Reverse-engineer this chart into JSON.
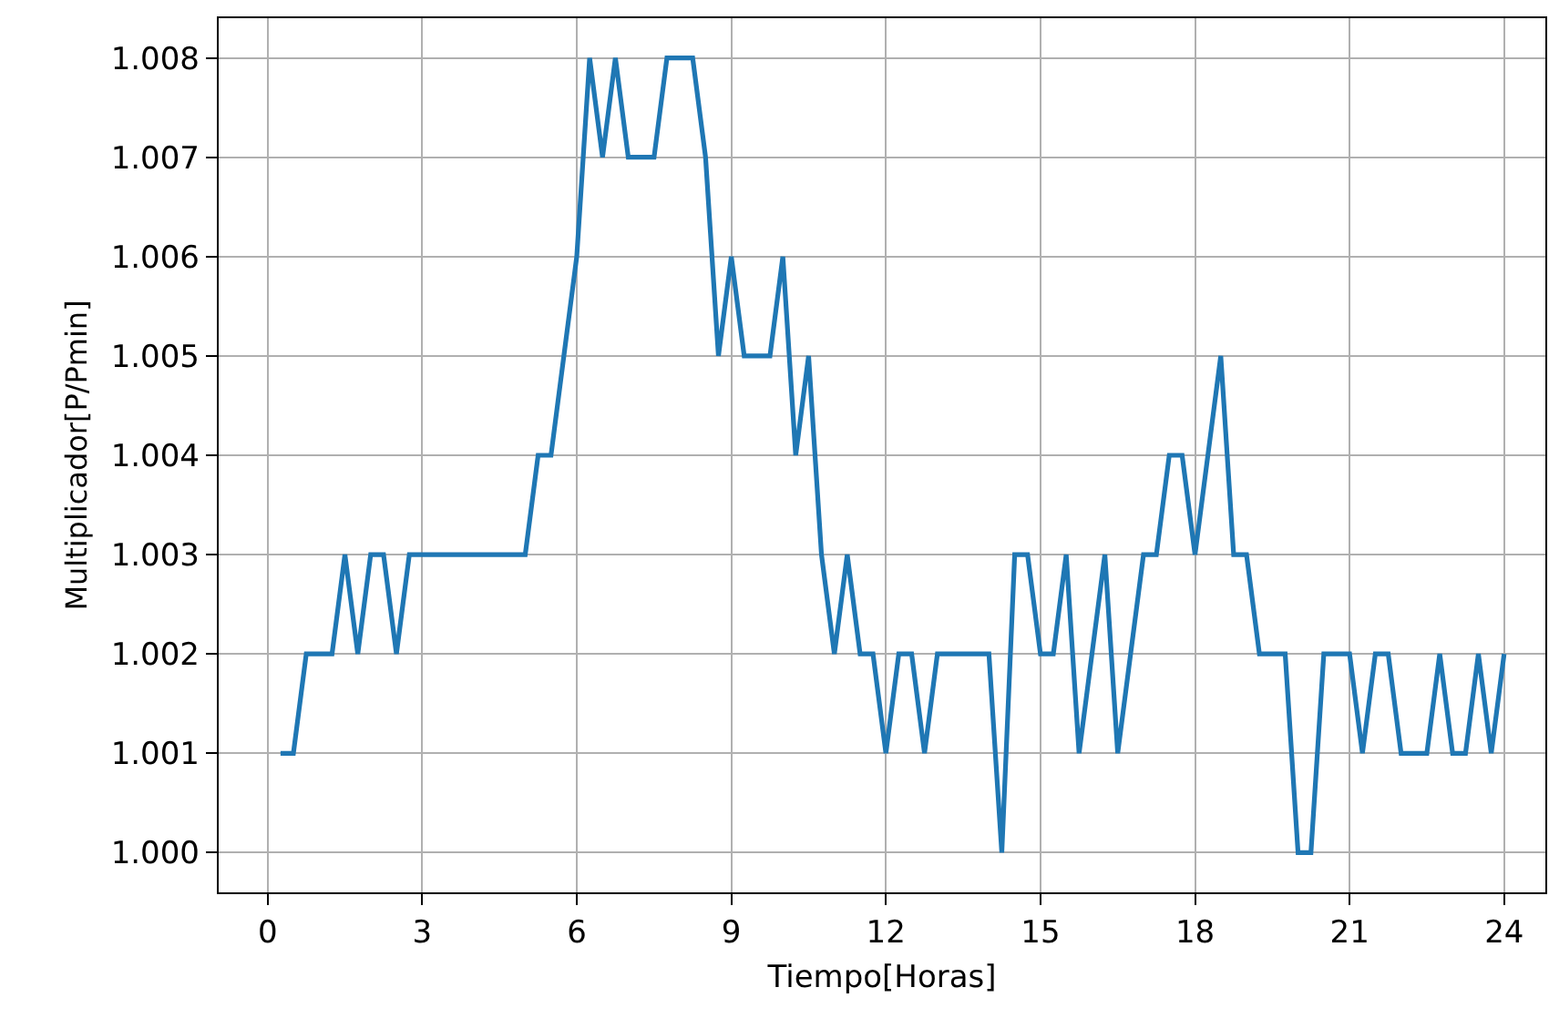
{
  "chart_data": {
    "type": "line",
    "xlabel": "Tiempo[Horas]",
    "ylabel": "Multiplicador[P/Pmin]",
    "x": [
      0.25,
      0.5,
      0.75,
      1,
      1.25,
      1.5,
      1.75,
      2,
      2.25,
      2.5,
      2.75,
      3,
      3.25,
      3.5,
      3.75,
      4,
      4.25,
      4.5,
      4.75,
      5,
      5.25,
      5.5,
      5.75,
      6,
      6.25,
      6.5,
      6.75,
      7,
      7.25,
      7.5,
      7.75,
      8,
      8.25,
      8.5,
      8.75,
      9,
      9.25,
      9.5,
      9.75,
      10,
      10.25,
      10.5,
      10.75,
      11,
      11.25,
      11.5,
      11.75,
      12,
      12.25,
      12.5,
      12.75,
      13,
      13.25,
      13.5,
      13.75,
      14,
      14.25,
      14.5,
      14.75,
      15,
      15.25,
      15.5,
      15.75,
      16,
      16.25,
      16.5,
      16.75,
      17,
      17.25,
      17.5,
      17.75,
      18,
      18.25,
      18.5,
      18.75,
      19,
      19.25,
      19.5,
      19.75,
      20,
      20.25,
      20.5,
      20.75,
      21,
      21.25,
      21.5,
      21.75,
      22,
      22.25,
      22.5,
      22.75,
      23,
      23.25,
      23.5,
      23.75,
      24
    ],
    "series": [
      {
        "color": "#1f77b4",
        "values": [
          1.001,
          1.001,
          1.002,
          1.002,
          1.002,
          1.003,
          1.002,
          1.003,
          1.003,
          1.002,
          1.003,
          1.003,
          1.003,
          1.003,
          1.003,
          1.003,
          1.003,
          1.003,
          1.003,
          1.003,
          1.004,
          1.004,
          1.005,
          1.006,
          1.008,
          1.007,
          1.008,
          1.007,
          1.007,
          1.007,
          1.008,
          1.008,
          1.008,
          1.007,
          1.005,
          1.006,
          1.005,
          1.005,
          1.005,
          1.006,
          1.004,
          1.005,
          1.003,
          1.002,
          1.003,
          1.002,
          1.002,
          1.001,
          1.002,
          1.002,
          1.001,
          1.002,
          1.002,
          1.002,
          1.002,
          1.002,
          1.0,
          1.003,
          1.003,
          1.002,
          1.002,
          1.003,
          1.001,
          1.002,
          1.003,
          1.001,
          1.002,
          1.003,
          1.003,
          1.004,
          1.004,
          1.003,
          1.004,
          1.005,
          1.003,
          1.003,
          1.002,
          1.002,
          1.002,
          1.0,
          1.0,
          1.002,
          1.002,
          1.002,
          1.001,
          1.002,
          1.002,
          1.001,
          1.001,
          1.001,
          1.002,
          1.001,
          1.001,
          1.002,
          1.001,
          1.002
        ]
      }
    ],
    "xlim": [
      -0.95,
      24.8
    ],
    "ylim": [
      0.9996,
      1.0084
    ],
    "xticks": [
      0,
      3,
      6,
      9,
      12,
      15,
      18,
      21,
      24
    ],
    "yticks": [
      {
        "value": 1.0,
        "label": "1.000"
      },
      {
        "value": 1.001,
        "label": "1.001"
      },
      {
        "value": 1.002,
        "label": "1.002"
      },
      {
        "value": 1.003,
        "label": "1.003"
      },
      {
        "value": 1.004,
        "label": "1.004"
      },
      {
        "value": 1.005,
        "label": "1.005"
      },
      {
        "value": 1.006,
        "label": "1.006"
      },
      {
        "value": 1.007,
        "label": "1.007"
      },
      {
        "value": 1.008,
        "label": "1.008"
      }
    ],
    "grid": true
  }
}
